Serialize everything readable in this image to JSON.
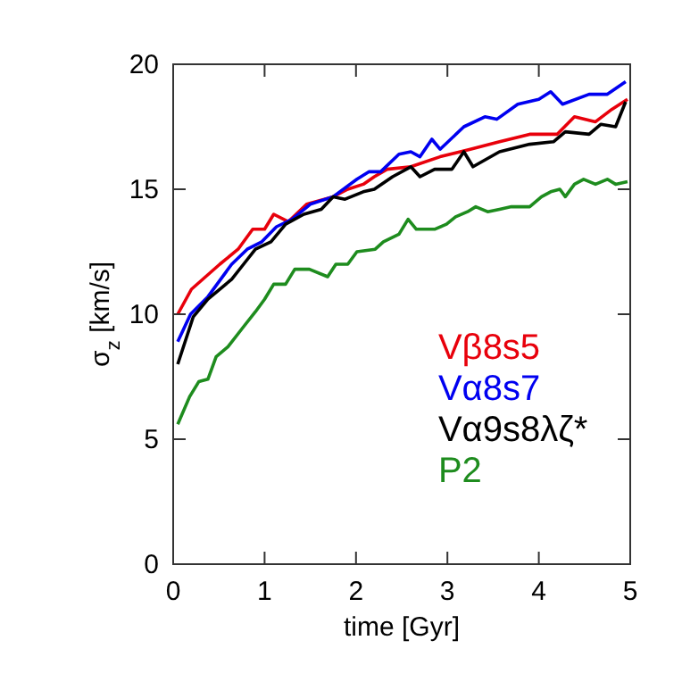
{
  "chart_data": {
    "type": "line",
    "xlabel": "time [Gyr]",
    "ylabel": "σ$_{z}$ [km/s]",
    "xlim": [
      0,
      5
    ],
    "ylim": [
      0,
      20
    ],
    "xticks": [
      0,
      1,
      2,
      3,
      4,
      5
    ],
    "yticks": [
      0,
      5,
      10,
      15,
      20
    ],
    "legend": "right",
    "series": [
      {
        "name": "Vβ8s5",
        "color": "#e8000b",
        "x": [
          0.05,
          0.2,
          0.51,
          0.71,
          0.87,
          1.0,
          1.1,
          1.26,
          1.46,
          1.75,
          1.91,
          2.08,
          2.2,
          2.34,
          2.6,
          2.92,
          3.25,
          3.57,
          3.9,
          4.2,
          4.39,
          4.62,
          4.8,
          4.97
        ],
        "values": [
          10.0,
          11.0,
          12.0,
          12.6,
          13.4,
          13.4,
          14.0,
          13.7,
          14.4,
          14.7,
          15.0,
          15.2,
          15.5,
          15.8,
          15.9,
          16.3,
          16.6,
          16.9,
          17.2,
          17.2,
          17.9,
          17.7,
          18.2,
          18.6
        ]
      },
      {
        "name": "Vα8s7",
        "color": "#0000f0",
        "x": [
          0.05,
          0.19,
          0.38,
          0.64,
          0.81,
          0.97,
          1.13,
          1.3,
          1.5,
          1.75,
          2.01,
          2.14,
          2.27,
          2.47,
          2.6,
          2.7,
          2.83,
          2.92,
          3.18,
          3.41,
          3.54,
          3.77,
          4.0,
          4.13,
          4.26,
          4.55,
          4.75,
          4.95
        ],
        "values": [
          8.9,
          10.0,
          10.7,
          12.0,
          12.6,
          12.9,
          13.5,
          13.8,
          14.4,
          14.7,
          15.4,
          15.7,
          15.7,
          16.4,
          16.5,
          16.3,
          17.0,
          16.6,
          17.5,
          17.9,
          17.8,
          18.4,
          18.6,
          18.9,
          18.4,
          18.8,
          18.8,
          19.3
        ]
      },
      {
        "name": "Vα9s8λζ*",
        "color": "#000000",
        "x": [
          0.05,
          0.22,
          0.38,
          0.64,
          0.77,
          0.9,
          1.07,
          1.23,
          1.43,
          1.62,
          1.75,
          1.88,
          2.08,
          2.2,
          2.4,
          2.6,
          2.7,
          2.86,
          3.05,
          3.18,
          3.28,
          3.57,
          3.9,
          4.16,
          4.29,
          4.55,
          4.68,
          4.84,
          4.95
        ],
        "values": [
          8.0,
          9.9,
          10.6,
          11.4,
          12.0,
          12.6,
          12.9,
          13.6,
          14.0,
          14.2,
          14.7,
          14.6,
          14.9,
          15.0,
          15.5,
          15.9,
          15.5,
          15.8,
          15.8,
          16.5,
          15.9,
          16.5,
          16.8,
          16.9,
          17.3,
          17.2,
          17.6,
          17.5,
          18.5
        ]
      },
      {
        "name": "P2",
        "color": "#1e8c1e",
        "x": [
          0.05,
          0.18,
          0.28,
          0.38,
          0.47,
          0.6,
          0.77,
          0.9,
          1.0,
          1.1,
          1.23,
          1.33,
          1.49,
          1.69,
          1.78,
          1.91,
          2.01,
          2.21,
          2.3,
          2.47,
          2.57,
          2.66,
          2.86,
          2.99,
          3.09,
          3.22,
          3.31,
          3.44,
          3.57,
          3.7,
          3.9,
          4.03,
          4.13,
          4.23,
          4.29,
          4.39,
          4.49,
          4.62,
          4.75,
          4.84,
          4.97
        ],
        "values": [
          5.6,
          6.7,
          7.3,
          7.4,
          8.3,
          8.7,
          9.5,
          10.1,
          10.6,
          11.2,
          11.2,
          11.8,
          11.8,
          11.5,
          12.0,
          12.0,
          12.5,
          12.6,
          12.9,
          13.2,
          13.8,
          13.4,
          13.4,
          13.6,
          13.9,
          14.1,
          14.3,
          14.1,
          14.2,
          14.3,
          14.3,
          14.7,
          14.9,
          15.0,
          14.7,
          15.2,
          15.4,
          15.2,
          15.4,
          15.2,
          15.3
        ]
      }
    ]
  }
}
